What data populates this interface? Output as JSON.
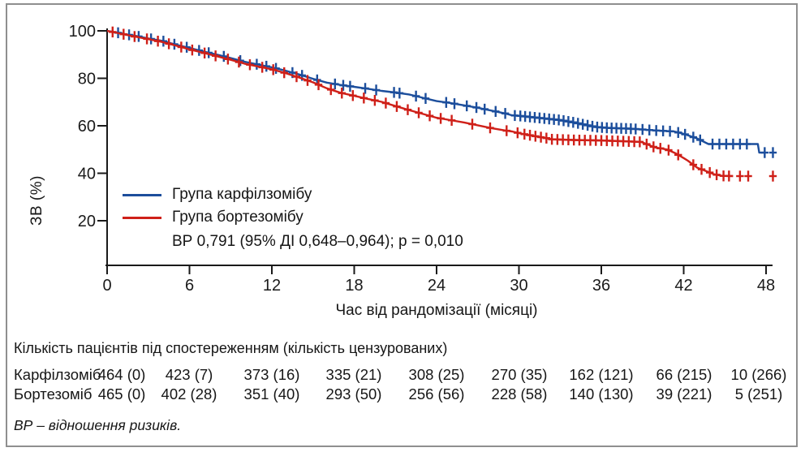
{
  "chart_data": {
    "type": "line",
    "subtype": "kaplan_meier_survival",
    "title": "",
    "xlabel": "Час від рандомізації (місяці)",
    "ylabel": "ЗВ (%)",
    "xticks": [
      0,
      6,
      12,
      18,
      24,
      30,
      36,
      42,
      48
    ],
    "yticks": [
      100,
      80,
      60,
      40,
      20
    ],
    "xlim": [
      0,
      49.5
    ],
    "ylim": [
      0,
      100
    ],
    "grid": false,
    "legend_position": "inside-left",
    "annotation": "ВР 0,791 (95% ДІ 0,648–0,964); p = 0,010",
    "series": [
      {
        "name": "Група карфілзомібу",
        "color": "#1c4e9c",
        "points": [
          [
            0,
            100
          ],
          [
            0.7,
            99.3
          ],
          [
            1.5,
            98.4
          ],
          [
            2,
            98
          ],
          [
            3,
            96.8
          ],
          [
            4,
            95.8
          ],
          [
            5,
            94.2
          ],
          [
            6,
            92.8
          ],
          [
            7,
            91.3
          ],
          [
            8,
            90
          ],
          [
            9,
            88.5
          ],
          [
            10,
            87
          ],
          [
            11,
            85.8
          ],
          [
            12,
            84.6
          ],
          [
            13,
            83.2
          ],
          [
            14,
            81.6
          ],
          [
            15,
            79.8
          ],
          [
            16,
            78.2
          ],
          [
            17,
            77.2
          ],
          [
            18,
            76.4
          ],
          [
            19,
            75.6
          ],
          [
            20,
            74.7
          ],
          [
            21,
            74
          ],
          [
            22,
            73.2
          ],
          [
            23,
            71.8
          ],
          [
            24,
            70.4
          ],
          [
            25,
            69.6
          ],
          [
            26,
            68.6
          ],
          [
            27,
            67.6
          ],
          [
            28,
            66.4
          ],
          [
            29,
            65.2
          ],
          [
            29.5,
            64.4
          ],
          [
            30,
            64.2
          ],
          [
            31,
            63.6
          ],
          [
            32,
            63
          ],
          [
            33,
            62.4
          ],
          [
            34,
            61.4
          ],
          [
            35,
            60.2
          ],
          [
            35.6,
            59.5
          ],
          [
            36.5,
            59.1
          ],
          [
            38,
            58.8
          ],
          [
            38.9,
            58.5
          ],
          [
            40,
            58
          ],
          [
            41.3,
            57.6
          ],
          [
            42,
            56.6
          ],
          [
            42.5,
            55.6
          ],
          [
            43,
            54.6
          ],
          [
            43.8,
            52.3
          ],
          [
            47.4,
            52.3
          ],
          [
            47.5,
            48.7
          ],
          [
            47.9,
            48.7
          ]
        ],
        "censor_months": [
          0.8,
          1.6,
          2.3,
          3.2,
          4.1,
          4.9,
          5.8,
          6.7,
          7.4,
          8.5,
          9.7,
          10.9,
          11.6,
          12.3,
          13.5,
          14.2,
          15.3,
          16.6,
          17.2,
          17.7,
          18.8,
          19.6,
          20.9,
          21.3,
          22.5,
          23.2,
          24.7,
          25.3,
          26.2,
          26.9,
          27.5,
          28.3,
          29,
          29.7,
          30.1,
          30.45,
          30.8,
          31.15,
          31.5,
          31.85,
          32.2,
          32.55,
          32.9,
          33.25,
          33.6,
          33.95,
          34.3,
          34.65,
          35,
          35.35,
          35.7,
          36.05,
          36.4,
          36.75,
          37.1,
          37.45,
          37.8,
          38.15,
          38.5,
          39,
          39.5,
          40,
          40.5,
          41,
          41.6,
          42.1,
          42.7,
          43.2,
          44.1,
          44.6,
          45.1,
          45.6,
          46.1,
          46.6,
          47.9,
          48.5
        ]
      },
      {
        "name": "Група бортезомібу",
        "color": "#cf2019",
        "points": [
          [
            0,
            100
          ],
          [
            1,
            98.8
          ],
          [
            2,
            97.6
          ],
          [
            3,
            96.5
          ],
          [
            4,
            95.3
          ],
          [
            5,
            93.8
          ],
          [
            6,
            92.2
          ],
          [
            7,
            90.8
          ],
          [
            8,
            89.3
          ],
          [
            9,
            87.8
          ],
          [
            10,
            86.2
          ],
          [
            11,
            85
          ],
          [
            12,
            83.8
          ],
          [
            13,
            82.2
          ],
          [
            14,
            80.3
          ],
          [
            15,
            78.3
          ],
          [
            16,
            75.8
          ],
          [
            17,
            73.9
          ],
          [
            18,
            72.6
          ],
          [
            19,
            71.3
          ],
          [
            20,
            70.1
          ],
          [
            21,
            68.3
          ],
          [
            22,
            66.6
          ],
          [
            23,
            65
          ],
          [
            24,
            63.4
          ],
          [
            25,
            62.4
          ],
          [
            26,
            61.4
          ],
          [
            27,
            60.2
          ],
          [
            28,
            59
          ],
          [
            29,
            58
          ],
          [
            29.5,
            57.6
          ],
          [
            30,
            56.9
          ],
          [
            31,
            55.8
          ],
          [
            32,
            54.8
          ],
          [
            32.4,
            54.3
          ],
          [
            34,
            54
          ],
          [
            36,
            53.8
          ],
          [
            38,
            53.4
          ],
          [
            38.9,
            53.2
          ],
          [
            39.9,
            50.9
          ],
          [
            40.8,
            50
          ],
          [
            41.4,
            48.4
          ],
          [
            42,
            46.4
          ],
          [
            42.3,
            45.3
          ],
          [
            43,
            42.3
          ],
          [
            43.6,
            41
          ],
          [
            44.2,
            39.6
          ],
          [
            44.8,
            38.9
          ],
          [
            45.6,
            38.8
          ]
        ],
        "censor_months": [
          0.4,
          1.2,
          2,
          2.9,
          3.7,
          4.5,
          5.4,
          6.2,
          7.1,
          7.9,
          8.8,
          9.6,
          10.4,
          11.3,
          12.1,
          12.9,
          13.8,
          14.6,
          15.4,
          16.3,
          17.1,
          17.9,
          18.7,
          19.5,
          20.3,
          21.1,
          21.9,
          22.7,
          23.5,
          24.3,
          25.1,
          26.6,
          27.9,
          29.1,
          29.9,
          30.4,
          30.8,
          31.2,
          31.6,
          32,
          32.4,
          32.8,
          33.2,
          33.6,
          34,
          34.4,
          34.8,
          35.2,
          35.6,
          36,
          36.4,
          36.8,
          37.2,
          37.6,
          38,
          38.4,
          38.8,
          39.3,
          39.8,
          40.3,
          40.9,
          41.6,
          42.7,
          43.3,
          43.9,
          44.4,
          44.9,
          45.3,
          46.1,
          46.7,
          48.5
        ]
      }
    ]
  },
  "risk_table": {
    "title": "Кількість пацієнтів під спостереженням (кількість цензурованих)",
    "timepoints": [
      0,
      6,
      12,
      18,
      24,
      30,
      36,
      42,
      48
    ],
    "rows": [
      {
        "label": "Карфілзоміб",
        "values": [
          "464 (0)",
          "423 (7)",
          "373 (16)",
          "335 (21)",
          "308 (25)",
          "270 (35)",
          "162 (121)",
          "66 (215)",
          "10 (266)"
        ]
      },
      {
        "label": "Бортезоміб",
        "values": [
          "465 (0)",
          "402 (28)",
          "351 (40)",
          "293 (50)",
          "256 (56)",
          "228 (58)",
          "140 (130)",
          "39 (221)",
          "5 (251)"
        ]
      }
    ]
  },
  "footnote": "ВР – відношення ризиків."
}
